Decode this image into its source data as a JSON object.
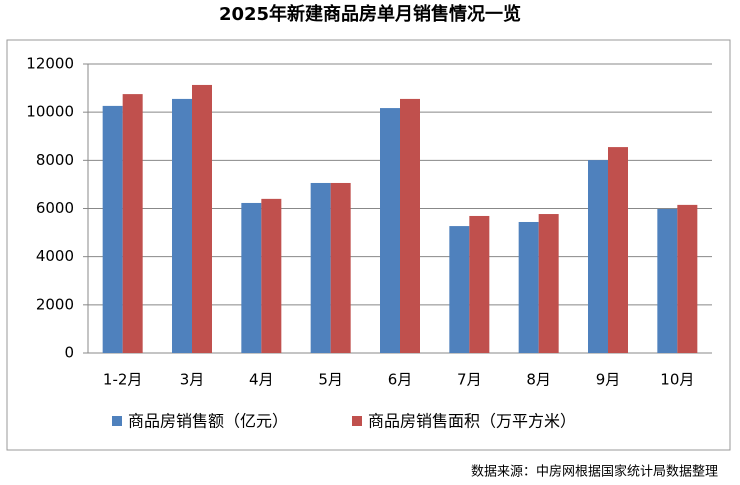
{
  "chart_data": {
    "type": "bar",
    "title": "2025年新建商品房单月销售情况一览",
    "categories": [
      "1-2月",
      "3月",
      "4月",
      "5月",
      "6月",
      "7月",
      "8月",
      "9月",
      "10月"
    ],
    "series": [
      {
        "name": "商品房销售额（亿元）",
        "color": "#4f81bd",
        "values": [
          10260,
          10550,
          6230,
          7060,
          10170,
          5270,
          5440,
          8010,
          5980
        ]
      },
      {
        "name": "商品房销售面积（万平方米）",
        "color": "#c0504d",
        "values": [
          10750,
          11130,
          6400,
          7060,
          10550,
          5690,
          5770,
          8550,
          6150
        ]
      }
    ],
    "ylim": [
      0,
      12000
    ],
    "yticks": [
      0,
      2000,
      4000,
      6000,
      8000,
      10000,
      12000
    ],
    "grid": true,
    "source": "数据来源：中房网根据国家统计局数据整理"
  }
}
